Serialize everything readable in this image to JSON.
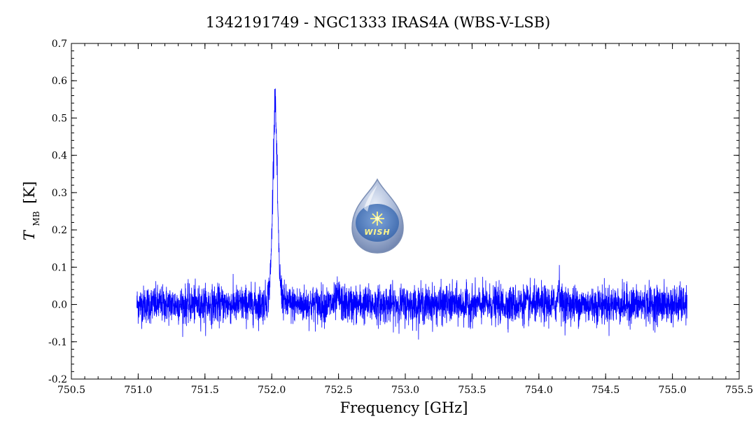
{
  "chart_data": {
    "type": "line",
    "title": "1342191749 - NGC1333 IRAS4A (WBS-V-LSB)",
    "xlabel": "Frequency [GHz]",
    "ylabel": {
      "symbol": "T",
      "subscript": "MB",
      "unit": "[K]"
    },
    "xlim": [
      750.5,
      755.5
    ],
    "ylim": [
      -0.2,
      0.7
    ],
    "xticks": [
      "750.5",
      "751.0",
      "751.5",
      "752.0",
      "752.5",
      "753.0",
      "753.5",
      "754.0",
      "754.5",
      "755.0",
      "755.5"
    ],
    "yticks": [
      "-0.2",
      "-0.1",
      "0.0",
      "0.1",
      "0.2",
      "0.3",
      "0.4",
      "0.5",
      "0.6",
      "0.7"
    ],
    "grid": false,
    "series": [
      {
        "color": "#0000ff",
        "x_range": [
          750.99,
          755.11
        ],
        "noise_rms": 0.025,
        "peaks": [
          {
            "x": 752.025,
            "y": 0.6
          },
          {
            "x": 754.15,
            "y": 0.06
          },
          {
            "x": 752.5,
            "y": 0.02
          }
        ]
      }
    ],
    "logo": {
      "text": "WISH"
    }
  }
}
